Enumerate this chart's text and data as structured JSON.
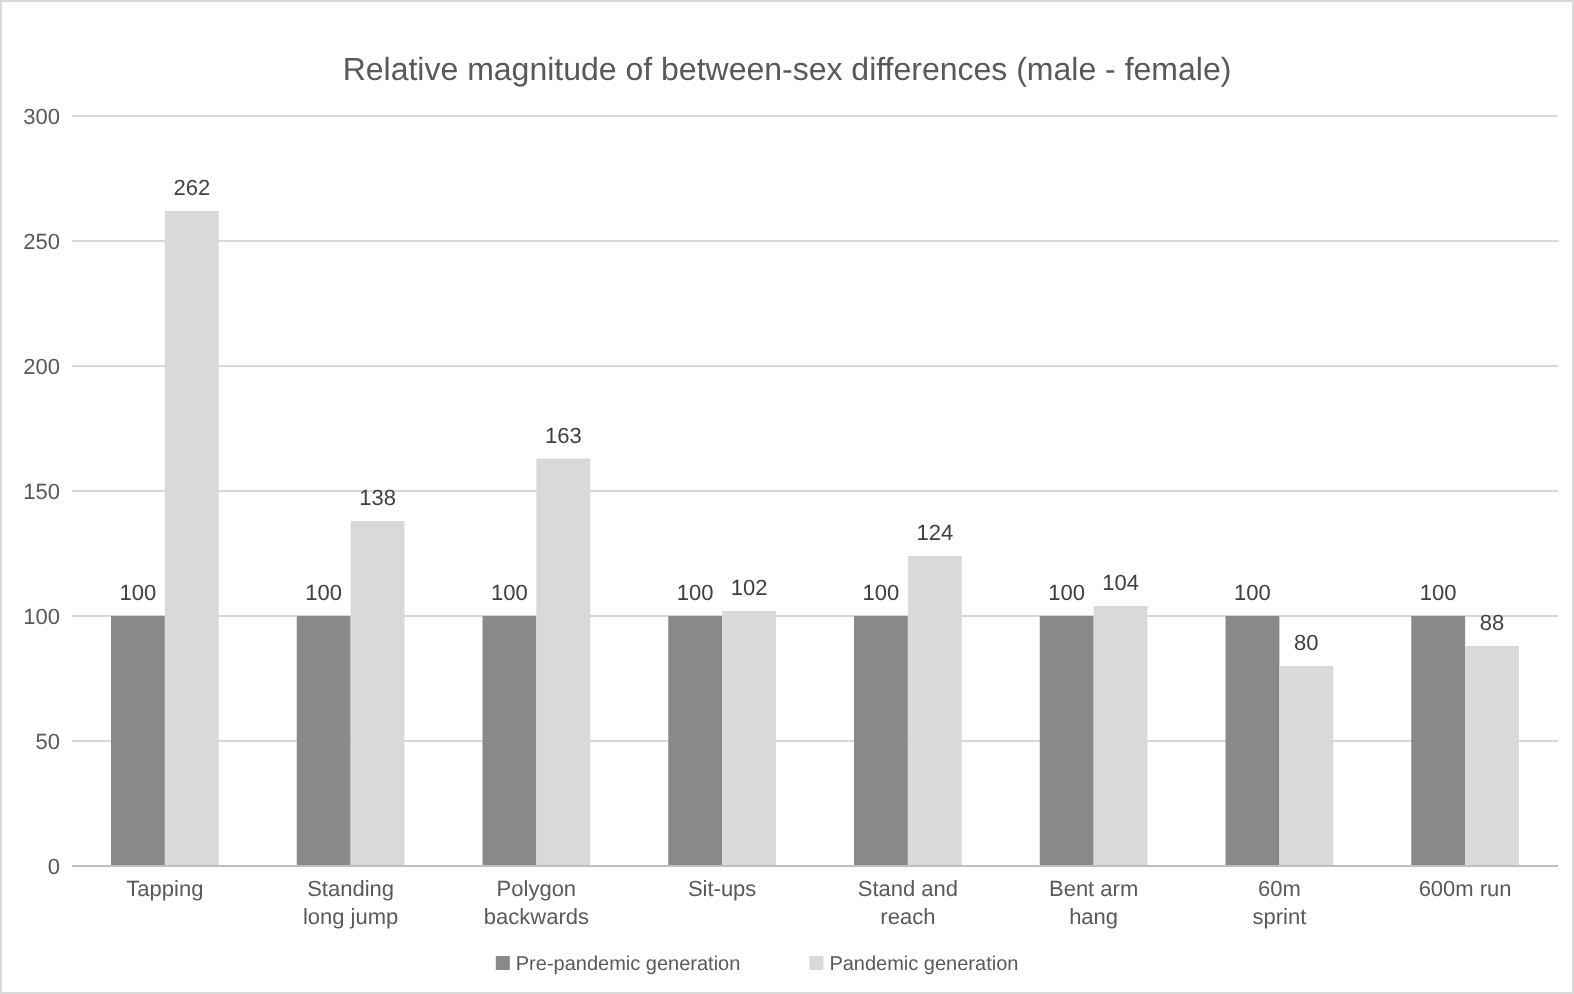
{
  "chart_data": {
    "type": "bar",
    "title": "Relative magnitude of between-sex differences (male - female)",
    "categories": [
      "Tapping",
      "Standing\nlong jump",
      "Polygon\nbackwards",
      "Sit-ups",
      "Stand and\nreach",
      "Bent arm\nhang",
      "60m\nsprint",
      "600m run"
    ],
    "series": [
      {
        "name": "Pre-pandemic generation",
        "color": "#898989",
        "values": [
          100,
          100,
          100,
          100,
          100,
          100,
          100,
          100
        ]
      },
      {
        "name": "Pandemic generation",
        "color": "#d9d9d9",
        "values": [
          262,
          138,
          163,
          102,
          124,
          104,
          80,
          88
        ]
      }
    ],
    "ylim": [
      0,
      300
    ],
    "yticks": [
      0,
      50,
      100,
      150,
      200,
      250,
      300
    ],
    "grid": "y",
    "legend": "bottom",
    "data_labels": true
  }
}
